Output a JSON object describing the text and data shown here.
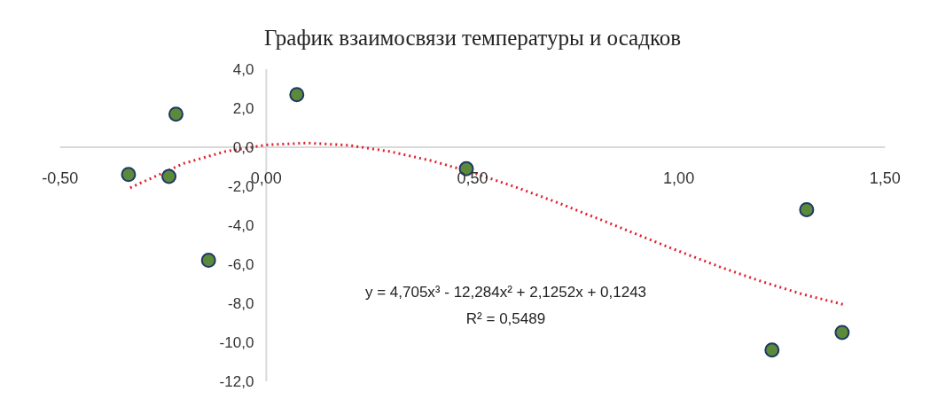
{
  "chart_data": {
    "type": "scatter",
    "title": "График взаимосвязи температуры и осадков",
    "series": [
      {
        "color": "#5b8a3a",
        "marker": "circle",
        "x": [
          -0.334,
          -0.219,
          -0.236,
          -0.14,
          0.074,
          0.485,
          1.31,
          1.226,
          1.396
        ],
        "values": [
          -1.4,
          1.7,
          -1.5,
          -5.8,
          2.7,
          -1.1,
          -3.2,
          -10.4,
          -9.5
        ]
      },
      {
        "type": "line",
        "color": "#e02030",
        "line_style": "dotted",
        "x": [
          -0.33,
          -0.2,
          -0.1,
          0,
          0.1,
          0.2,
          0.3,
          0.4,
          0.5,
          0.6,
          0.7,
          0.8,
          0.9,
          1.0,
          1.1,
          1.2,
          1.3,
          1.4
        ],
        "values": [
          -2.08,
          -0.83,
          -0.22,
          0.12,
          0.22,
          0.1,
          -0.22,
          -0.69,
          -1.3,
          -2.01,
          -2.79,
          -3.63,
          -4.48,
          -5.33,
          -6.14,
          -6.88,
          -7.54,
          -8.07
        ]
      }
    ],
    "xlim": [
      -0.5,
      1.5
    ],
    "ylim": [
      -12,
      4
    ],
    "xticks": [
      {
        "value": -0.5,
        "label": "-0,50"
      },
      {
        "value": 0,
        "label": "0,00"
      },
      {
        "value": 0.5,
        "label": "0,50"
      },
      {
        "value": 1.0,
        "label": "1,00"
      },
      {
        "value": 1.5,
        "label": "1,50"
      }
    ],
    "yticks": [
      {
        "value": -12,
        "label": "-12,0"
      },
      {
        "value": -10,
        "label": "-10,0"
      },
      {
        "value": -8,
        "label": "-8,0"
      },
      {
        "value": -6,
        "label": "-6,0"
      },
      {
        "value": -4,
        "label": "-4,0"
      },
      {
        "value": -2,
        "label": "-2,0"
      },
      {
        "value": 0,
        "label": "0,0"
      },
      {
        "value": 2,
        "label": "2,0"
      },
      {
        "value": 4,
        "label": "4,0"
      }
    ],
    "annotations": [
      "y = 4,705x³ - 12,284x² + 2,1252x + 0,1243",
      "R² = 0,5489"
    ],
    "grid": false
  }
}
